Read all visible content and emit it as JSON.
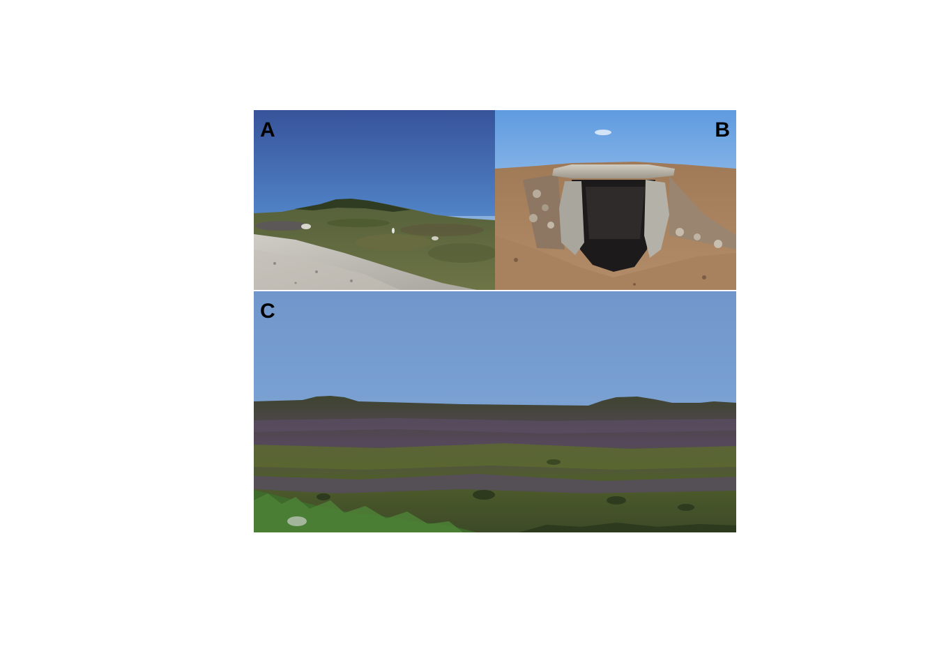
{
  "figure": {
    "panels": [
      {
        "id": "a",
        "label": "A"
      },
      {
        "id": "b",
        "label": "B"
      },
      {
        "id": "c",
        "label": "C"
      }
    ]
  },
  "colors": {
    "sky_deep": "#39569a",
    "sky_light": "#7fb0e0",
    "sky_pale": "#7aa0d0",
    "soil": "#a88463",
    "stone": "#b3afa4",
    "chamber": "#1c1a1a",
    "heath": "#4a4f2e",
    "heather_purple": "#5b4d63"
  }
}
